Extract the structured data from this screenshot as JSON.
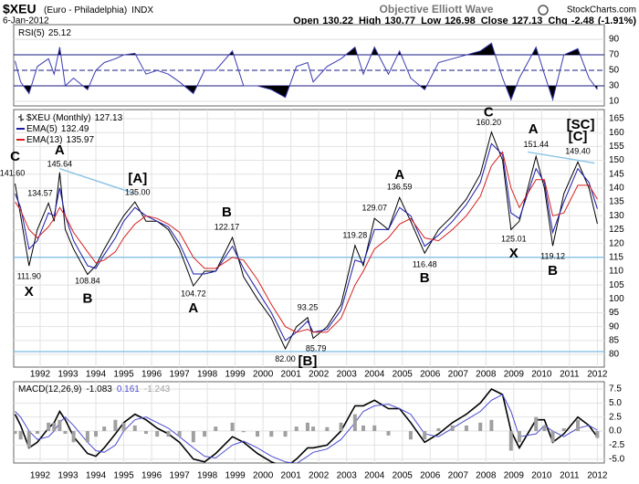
{
  "header": {
    "symbol": "$XEU",
    "name": "(Euro - Philadelphia)",
    "exchange": "INDX",
    "title": "Objective Elliott Wave",
    "source": "StockCharts.com",
    "date": "6-Jan-2012",
    "ohlc": [
      {
        "label": "Open",
        "value": 130.22
      },
      {
        "label": "High",
        "value": 130.77
      },
      {
        "label": "Low",
        "value": 126.98
      },
      {
        "label": "Close",
        "value": 127.13
      },
      {
        "label": "Chg",
        "value": -2.48,
        "pct": {
          "value": -1.91,
          "label": "(-1.91%)"
        }
      }
    ]
  },
  "chart_data": [
    {
      "type": "line",
      "x": [
        1991.1,
        1991.3,
        1991.6,
        1991.9,
        1992.3,
        1992.5,
        1992.7,
        1992.9,
        1993.2,
        1993.7,
        1994.0,
        1994.3,
        1994.7,
        1995.0,
        1995.4,
        1995.8,
        1996.2,
        1996.6,
        1997.0,
        1997.5,
        1997.9,
        1998.3,
        1998.9,
        1999.3,
        1999.8,
        2000.3,
        2000.8,
        2001.2,
        2001.6,
        2001.8,
        2002.3,
        2002.8,
        2003.3,
        2003.6,
        2004.0,
        2004.5,
        2004.9,
        2005.3,
        2005.8,
        2006.3,
        2006.8,
        2007.3,
        2007.8,
        2008.2,
        2008.6,
        2008.9,
        2009.2,
        2009.8,
        2010.1,
        2010.4,
        2010.8,
        2011.3,
        2011.7,
        2012.0
      ],
      "series": [
        {
          "name": "RSI(5)",
          "color": "#3a3ab0",
          "values": [
            62,
            35,
            20,
            55,
            65,
            45,
            80,
            30,
            40,
            25,
            50,
            60,
            65,
            70,
            72,
            45,
            50,
            45,
            35,
            20,
            50,
            50,
            75,
            30,
            30,
            25,
            15,
            55,
            60,
            35,
            55,
            65,
            80,
            45,
            80,
            45,
            75,
            40,
            25,
            60,
            65,
            70,
            75,
            85,
            40,
            12,
            40,
            80,
            45,
            12,
            70,
            78,
            40,
            25.12
          ]
        }
      ],
      "xlim": [
        1991.05,
        2012.25
      ],
      "ylim": [
        4,
        109
      ],
      "yticks": [
        10,
        30,
        50,
        70,
        90
      ],
      "overbought": 70,
      "oversold": 30
    },
    {
      "type": "line",
      "x": [
        1991.1,
        1991.3,
        1991.6,
        1991.9,
        1992.3,
        1992.5,
        1992.7,
        1992.9,
        1993.2,
        1993.7,
        1994.0,
        1994.3,
        1994.7,
        1995.0,
        1995.4,
        1995.8,
        1996.2,
        1996.6,
        1997.0,
        1997.5,
        1997.9,
        1998.3,
        1998.9,
        1999.3,
        1999.8,
        2000.3,
        2000.8,
        2001.2,
        2001.6,
        2001.8,
        2002.3,
        2002.8,
        2003.3,
        2003.6,
        2004.0,
        2004.5,
        2004.9,
        2005.3,
        2005.8,
        2006.3,
        2006.8,
        2007.3,
        2007.8,
        2008.2,
        2008.6,
        2008.9,
        2009.2,
        2009.8,
        2010.1,
        2010.4,
        2010.8,
        2011.3,
        2011.7,
        2012.0
      ],
      "series": [
        {
          "name": "$XEU (Monthly)",
          "color": "#000000",
          "values": [
            141.6,
            130,
            111.9,
            125,
            134.57,
            128,
            145.64,
            125,
            118,
            108.84,
            112,
            118,
            125,
            130,
            135.0,
            128,
            128,
            125,
            118,
            104.72,
            110,
            110,
            122.17,
            108,
            100,
            93,
            82.0,
            90,
            93.25,
            85.79,
            90,
            98,
            119.28,
            112,
            129.07,
            125,
            136.59,
            128,
            116.48,
            125,
            130,
            136,
            145,
            160.2,
            150,
            125.01,
            128,
            151.44,
            140,
            119.12,
            138,
            149.4,
            140,
            127.13
          ]
        },
        {
          "name": "EMA(5)",
          "color": "#1a1aa8",
          "values": [
            138,
            133,
            118,
            121,
            131,
            130,
            140,
            130,
            121,
            112,
            111,
            116,
            122,
            128,
            133,
            130,
            128,
            126,
            120,
            109,
            109,
            110,
            119,
            111,
            103,
            95,
            85,
            88,
            92,
            88,
            89,
            96,
            114,
            113,
            125,
            125,
            133,
            130,
            119,
            123,
            128,
            134,
            142,
            156,
            152,
            131,
            129,
            147,
            142,
            124,
            135,
            147,
            142,
            132.49
          ]
        },
        {
          "name": "EMA(13)",
          "color": "#d42020",
          "values": [
            135,
            132,
            125,
            122,
            126,
            129,
            133,
            130,
            124,
            117,
            113,
            114,
            117,
            122,
            127,
            130,
            129,
            127,
            124,
            115,
            111,
            111,
            115,
            114,
            107,
            98,
            90,
            88,
            89,
            88,
            88,
            93,
            105,
            110,
            118,
            122,
            127,
            129,
            122,
            121,
            125,
            130,
            137,
            148,
            153,
            140,
            133,
            143,
            143,
            130,
            131,
            141,
            141,
            135.97
          ]
        }
      ],
      "xlim": [
        1991.05,
        2012.25
      ],
      "ylim": [
        75.4,
        168.3
      ],
      "yticks": [
        80,
        85,
        90,
        95,
        100,
        105,
        110,
        115,
        120,
        125,
        130,
        135,
        140,
        145,
        150,
        155,
        160,
        165
      ],
      "xticks": [
        1992,
        1993,
        1994,
        1995,
        1996,
        1997,
        1998,
        1999,
        2000,
        2001,
        2002,
        2003,
        2004,
        2005,
        2006,
        2007,
        2008,
        2009,
        2010,
        2011,
        2012
      ],
      "grid": true,
      "hlines": [
        115,
        81
      ],
      "guide_color": "#8ec5e6",
      "trendlines": [
        [
          [
            1992.7,
            147
          ],
          [
            1995.4,
            138
          ]
        ],
        [
          [
            2009.5,
            153
          ],
          [
            2011.9,
            149
          ]
        ]
      ],
      "annotations": [
        {
          "text": "C",
          "x": 1991.1,
          "y": 151.2,
          "color": "#1c1cc8"
        },
        {
          "text": "141.60",
          "x": 1991.0,
          "y": 145.2,
          "color": "#000000"
        },
        {
          "text": "A",
          "x": 1992.7,
          "y": 153.5,
          "color": "#1c1cc8"
        },
        {
          "text": "145.64",
          "x": 1992.7,
          "y": 148.5,
          "color": "#000000"
        },
        {
          "text": "134.57",
          "x": 1992.0,
          "y": 138,
          "color": "#000000"
        },
        {
          "text": "111.90",
          "x": 1991.6,
          "y": 108,
          "color": "#000000"
        },
        {
          "text": "X",
          "x": 1991.6,
          "y": 102.4,
          "color": "#1c1cc8"
        },
        {
          "text": "108.84",
          "x": 1993.7,
          "y": 106.4,
          "color": "#000000"
        },
        {
          "text": "B",
          "x": 1993.7,
          "y": 100,
          "color": "#1c1cc8"
        },
        {
          "text": "[A]",
          "x": 1995.5,
          "y": 143.3,
          "color": "#8ec5e6"
        },
        {
          "text": "135.00",
          "x": 1995.5,
          "y": 138.3,
          "color": "#000000"
        },
        {
          "text": "104.72",
          "x": 1997.5,
          "y": 101.7,
          "color": "#000000"
        },
        {
          "text": "A",
          "x": 1997.5,
          "y": 96.5,
          "color": "#1c1cc8"
        },
        {
          "text": "B",
          "x": 1998.7,
          "y": 131,
          "color": "#1c1cc8"
        },
        {
          "text": "122.17",
          "x": 1998.7,
          "y": 125.8,
          "color": "#000000"
        },
        {
          "text": "93.25",
          "x": 2001.6,
          "y": 96.8,
          "color": "#000000"
        },
        {
          "text": "82.00",
          "x": 2000.8,
          "y": 78.2,
          "color": "#000000"
        },
        {
          "text": "85.79",
          "x": 2001.9,
          "y": 82,
          "color": "#000000"
        },
        {
          "text": "[B]",
          "x": 2001.6,
          "y": 77.4,
          "color": "#8ec5e6"
        },
        {
          "text": "119.28",
          "x": 2003.3,
          "y": 122.8,
          "color": "#000000"
        },
        {
          "text": "129.07",
          "x": 2004.0,
          "y": 132.7,
          "color": "#000000"
        },
        {
          "text": "A",
          "x": 2004.9,
          "y": 144.6,
          "color": "#1c1cc8"
        },
        {
          "text": "136.59",
          "x": 2004.9,
          "y": 140.3,
          "color": "#000000"
        },
        {
          "text": "116.48",
          "x": 2005.8,
          "y": 112.3,
          "color": "#000000"
        },
        {
          "text": "B",
          "x": 2005.8,
          "y": 107.3,
          "color": "#1c1cc8"
        },
        {
          "text": "C",
          "x": 2008.1,
          "y": 167.2,
          "color": "#1c1cc8"
        },
        {
          "text": "160.20",
          "x": 2008.1,
          "y": 163.4,
          "color": "#000000"
        },
        {
          "text": "125.01",
          "x": 2009.0,
          "y": 121.5,
          "color": "#000000"
        },
        {
          "text": "X",
          "x": 2009.0,
          "y": 116.2,
          "color": "#1c1cc8"
        },
        {
          "text": "A",
          "x": 2009.7,
          "y": 161,
          "color": "#1c1cc8"
        },
        {
          "text": "151.44",
          "x": 2009.8,
          "y": 155.5,
          "color": "#000000"
        },
        {
          "text": "119.12",
          "x": 2010.4,
          "y": 115.3,
          "color": "#000000"
        },
        {
          "text": "B",
          "x": 2010.4,
          "y": 110,
          "color": "#1c1cc8"
        },
        {
          "text": "[SC]",
          "x": 2011.4,
          "y": 162.7,
          "color": "#2ac6c6"
        },
        {
          "text": "[C]",
          "x": 2011.3,
          "y": 158.4,
          "color": "#8ec5e6"
        },
        {
          "text": "149.40",
          "x": 2011.3,
          "y": 153.1,
          "color": "#000000"
        }
      ]
    },
    {
      "type": "line",
      "x": [
        1991.1,
        1991.3,
        1991.6,
        1991.9,
        1992.3,
        1992.5,
        1992.7,
        1992.9,
        1993.2,
        1993.7,
        1994.0,
        1994.3,
        1994.7,
        1995.0,
        1995.4,
        1995.8,
        1996.2,
        1996.6,
        1997.0,
        1997.5,
        1997.9,
        1998.3,
        1998.9,
        1999.3,
        1999.8,
        2000.3,
        2000.8,
        2001.2,
        2001.6,
        2001.8,
        2002.3,
        2002.8,
        2003.3,
        2003.6,
        2004.0,
        2004.5,
        2004.9,
        2005.3,
        2005.8,
        2006.3,
        2006.8,
        2007.3,
        2007.8,
        2008.2,
        2008.6,
        2008.9,
        2009.2,
        2009.8,
        2010.1,
        2010.4,
        2010.8,
        2011.3,
        2011.7,
        2012.0
      ],
      "series": [
        {
          "name": "MACD(12,26,9)",
          "color": "#000000",
          "values": [
            3.0,
            1.0,
            -3.0,
            -2.0,
            0.5,
            1.5,
            3.5,
            2.0,
            -1.0,
            -4.0,
            -4.5,
            -3.0,
            -0.5,
            1.5,
            3.0,
            2.0,
            0.5,
            -0.5,
            -2.0,
            -5.0,
            -5.5,
            -4.0,
            -1.0,
            -2.0,
            -4.0,
            -5.5,
            -6.5,
            -5.0,
            -3.0,
            -3.0,
            -2.5,
            0.0,
            4.5,
            4.5,
            5.5,
            4.0,
            4.0,
            1.5,
            -2.0,
            -0.5,
            1.5,
            3.0,
            5.0,
            7.5,
            6.5,
            0.0,
            -3.0,
            2.0,
            2.0,
            -2.0,
            -0.5,
            2.5,
            1.0,
            -1.083
          ]
        },
        {
          "color": "#4a4ad0",
          "values": [
            3.5,
            2.5,
            0.0,
            -1.5,
            -1.0,
            0.0,
            1.5,
            2.5,
            1.0,
            -2.0,
            -3.5,
            -3.8,
            -2.5,
            0.0,
            2.0,
            2.5,
            1.5,
            0.5,
            -1.0,
            -3.0,
            -4.5,
            -4.8,
            -2.5,
            -1.8,
            -3.0,
            -4.5,
            -5.5,
            -5.8,
            -4.5,
            -3.8,
            -3.2,
            -1.5,
            1.5,
            3.5,
            4.5,
            4.8,
            4.0,
            3.0,
            -0.5,
            -1.0,
            0.5,
            2.0,
            3.5,
            5.5,
            6.5,
            3.5,
            -1.0,
            -0.5,
            1.0,
            0.0,
            -1.0,
            0.5,
            1.0,
            0.161
          ]
        },
        {
          "type": "bar",
          "color": "#a0a0a0",
          "values": [
            -0.5,
            -1.5,
            -3.0,
            -0.5,
            1.5,
            1.5,
            2.0,
            -0.5,
            -2.0,
            -2.0,
            -1.0,
            0.8,
            2.0,
            1.5,
            1.0,
            -0.5,
            -1.0,
            -1.0,
            -1.0,
            -2.0,
            -1.0,
            0.8,
            1.5,
            -0.2,
            -1.0,
            -1.0,
            -1.0,
            0.8,
            1.5,
            0.8,
            0.7,
            1.5,
            3.0,
            1.0,
            1.0,
            -0.8,
            0,
            -1.5,
            -1.5,
            0.5,
            1.0,
            1.0,
            1.5,
            2.0,
            0,
            -3.5,
            -2.0,
            2.5,
            1.0,
            -2.0,
            0.5,
            2.0,
            0,
            -1.243
          ]
        }
      ],
      "xlim": [
        1991.05,
        2012.25
      ],
      "ylim": [
        -5.7,
        8.8
      ],
      "yticks": [
        7.5,
        {
          "value": 5,
          "label": "5.0"
        },
        2.5,
        {
          "value": 0,
          "label": "0.0"
        },
        -2.5,
        {
          "value": -5,
          "label": "-5.0"
        }
      ],
      "xticks": [
        1992,
        1993,
        1994,
        1995,
        1996,
        1997,
        1998,
        1999,
        2000,
        2001,
        2002,
        2003,
        2004,
        2005,
        2006,
        2007,
        2008,
        2009,
        2010,
        2011,
        2012
      ],
      "grid": true
    }
  ]
}
